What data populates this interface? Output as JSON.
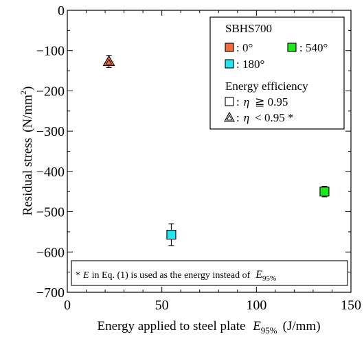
{
  "chart_data": {
    "type": "scatter",
    "title": "",
    "xlabel": {
      "main": "Energy applied to steel plate",
      "var": "E",
      "sub": "95%",
      "unit": "(J/mm)"
    },
    "ylabel": {
      "main": "Residual stress",
      "unit_pre": "(N/mm",
      "unit_sup": "2",
      "unit_post": ")"
    },
    "xlim": [
      0,
      150
    ],
    "ylim": [
      -700,
      0
    ],
    "xticks": [
      0,
      50,
      100,
      150
    ],
    "yticks": [
      0,
      -100,
      -200,
      -300,
      -400,
      -500,
      -600,
      -700
    ],
    "xtick_labels": [
      "0",
      "50",
      "100",
      "150"
    ],
    "ytick_labels": [
      "0",
      "−100",
      "−200",
      "−300",
      "−400",
      "−500",
      "−600",
      "−700"
    ],
    "grid": false,
    "legend_position": "top-right",
    "series": [
      {
        "name": ": 0°",
        "marker": "triangle",
        "color": "#f26b3a",
        "points": [
          {
            "x": 22,
            "y": -127,
            "err": 15
          }
        ]
      },
      {
        "name": ": 180°",
        "marker": "square",
        "color": "#27e3f0",
        "points": [
          {
            "x": 55,
            "y": -557,
            "err": 27
          }
        ]
      },
      {
        "name": ": 540°",
        "marker": "square",
        "color": "#1ee81a",
        "points": [
          {
            "x": 136,
            "y": -450,
            "err": 13
          }
        ]
      }
    ],
    "legend": {
      "title": "SBHS700",
      "subtitle": "Energy efficiency",
      "eff_square_pre": ":",
      "eff_square_var": "η",
      "eff_square_post": "≧ 0.95",
      "eff_triangle_pre": ":",
      "eff_triangle_var": "η",
      "eff_triangle_post": "< 0.95 *"
    },
    "annotation": {
      "pre": "*",
      "var": "E",
      "mid": "in Eq. (1) is used as the energy instead of",
      "var2": "E",
      "sub2": "95%"
    }
  }
}
